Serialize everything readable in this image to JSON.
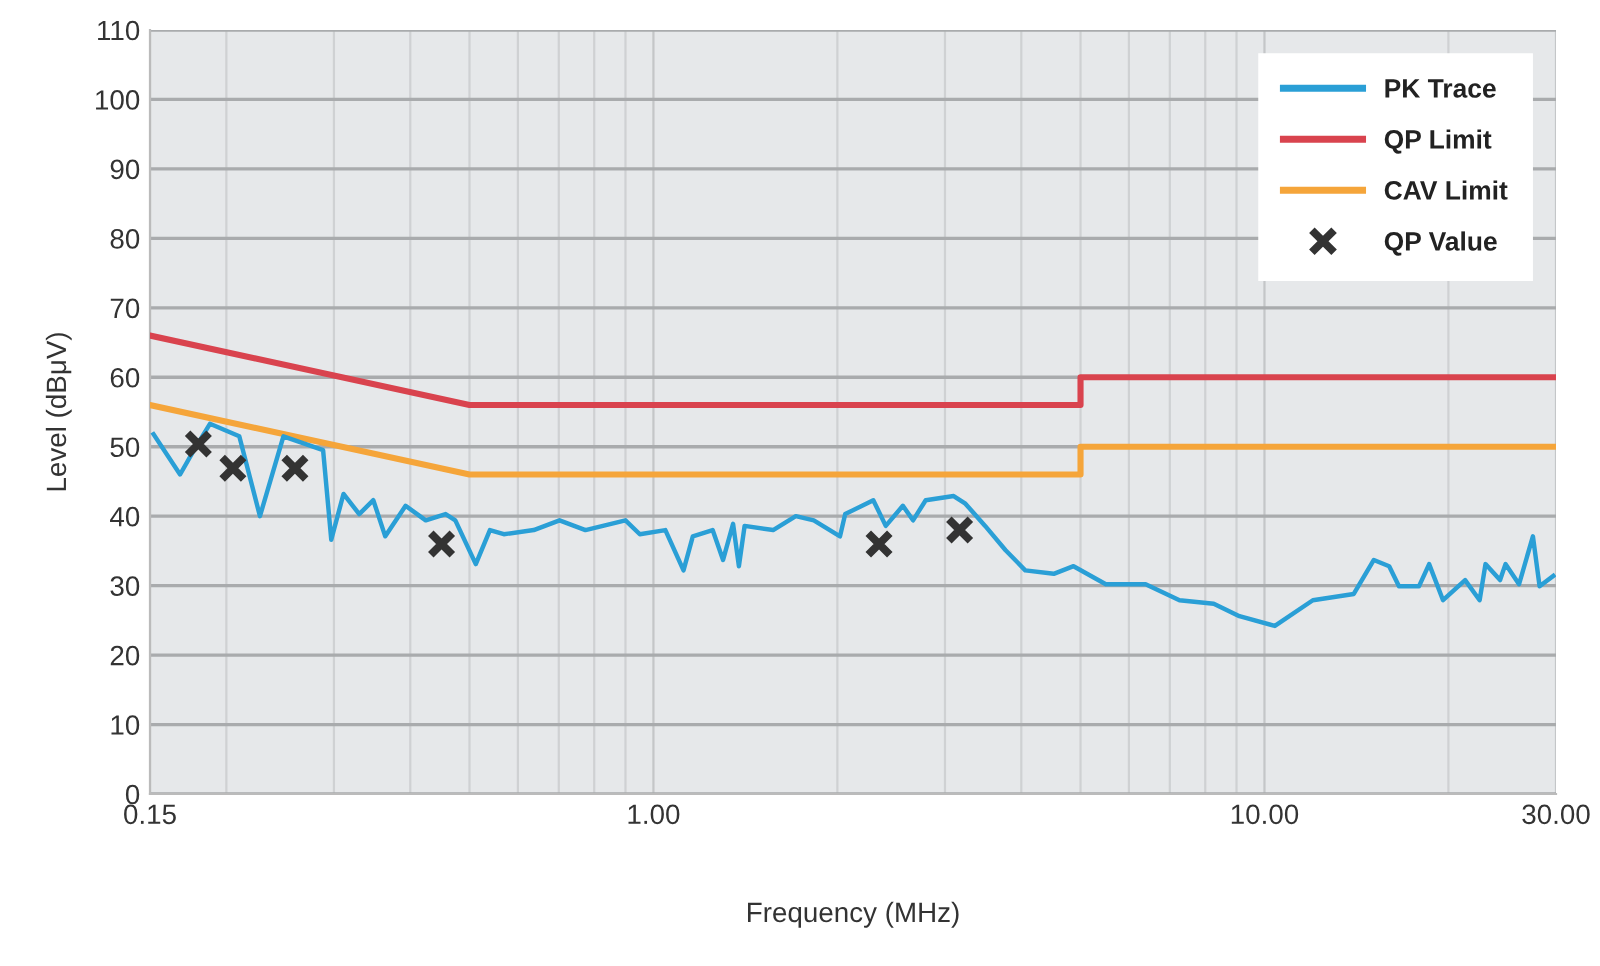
{
  "chart_data": {
    "type": "line",
    "xlabel": "Frequency (MHz)",
    "ylabel": "Level (dBμV)",
    "log": "x",
    "xlim": [
      0.15,
      30
    ],
    "xticks": [
      {
        "value": 0.15,
        "label": "0.15"
      },
      {
        "value": 1,
        "label": "1.00"
      },
      {
        "value": 10,
        "label": "10.00"
      },
      {
        "value": 30,
        "label": "30.00"
      }
    ],
    "ylim": [
      0,
      110
    ],
    "yticks": [
      0,
      10,
      20,
      30,
      40,
      50,
      60,
      70,
      80,
      90,
      100,
      110
    ],
    "grid": true,
    "legend": "top right",
    "series": [
      {
        "name": "PK Trace",
        "color": "#2a9fd6",
        "x": [
          0.152,
          0.168,
          0.177,
          0.188,
          0.21,
          0.227,
          0.248,
          0.288,
          0.297,
          0.311,
          0.33,
          0.348,
          0.364,
          0.393,
          0.424,
          0.457,
          0.474,
          0.512,
          0.54,
          0.569,
          0.637,
          0.702,
          0.774,
          0.9,
          0.95,
          1.046,
          1.12,
          1.16,
          1.25,
          1.3,
          1.35,
          1.38,
          1.41,
          1.57,
          1.71,
          1.83,
          2.02,
          2.06,
          2.29,
          2.4,
          2.56,
          2.66,
          2.79,
          3.1,
          3.24,
          3.49,
          3.77,
          4.06,
          4.52,
          4.87,
          5.5,
          6.39,
          7.26,
          8.26,
          9.1,
          10.4,
          12.0,
          14.0,
          15.1,
          16.0,
          16.6,
          17.9,
          18.6,
          19.6,
          21.3,
          22.5,
          23.0,
          24.3,
          24.8,
          26.1,
          27.5,
          28.2,
          29.7
        ],
        "values": [
          51.8,
          46,
          49.5,
          53.3,
          51.5,
          40,
          51.5,
          49.5,
          36.6,
          43.2,
          40.3,
          42.3,
          37.1,
          41.5,
          39.4,
          40.3,
          39.4,
          33.1,
          38,
          37.4,
          38,
          39.4,
          38,
          39.4,
          37.4,
          38,
          32.2,
          37.1,
          38,
          33.7,
          38.9,
          32.8,
          38.6,
          38,
          40,
          39.4,
          37.1,
          40.3,
          42.3,
          38.6,
          41.5,
          39.4,
          42.3,
          42.9,
          41.8,
          38.6,
          35.1,
          32.2,
          31.7,
          32.8,
          30.2,
          30.2,
          27.9,
          27.4,
          25.6,
          24.2,
          27.9,
          28.8,
          33.7,
          32.8,
          29.9,
          29.9,
          33.1,
          27.9,
          30.8,
          27.9,
          33.1,
          30.8,
          33.1,
          30.2,
          37.1,
          29.9,
          31.4
        ]
      },
      {
        "name": "QP Limit",
        "color": "#d9434e",
        "x": [
          0.15,
          0.5,
          5,
          5,
          30
        ],
        "values": [
          66,
          56,
          56,
          60,
          60
        ]
      },
      {
        "name": "CAV Limit",
        "color": "#f5a53a",
        "x": [
          0.15,
          0.5,
          5,
          5,
          30
        ],
        "values": [
          56,
          46,
          46,
          50,
          50
        ]
      },
      {
        "name": "QP Value",
        "type": "scatter",
        "marker": "cross",
        "color": "#333333",
        "x": [
          0.18,
          0.205,
          0.259,
          0.45,
          2.34,
          3.17
        ],
        "values": [
          50.4,
          46.9,
          46.9,
          36,
          36,
          38
        ]
      }
    ]
  }
}
